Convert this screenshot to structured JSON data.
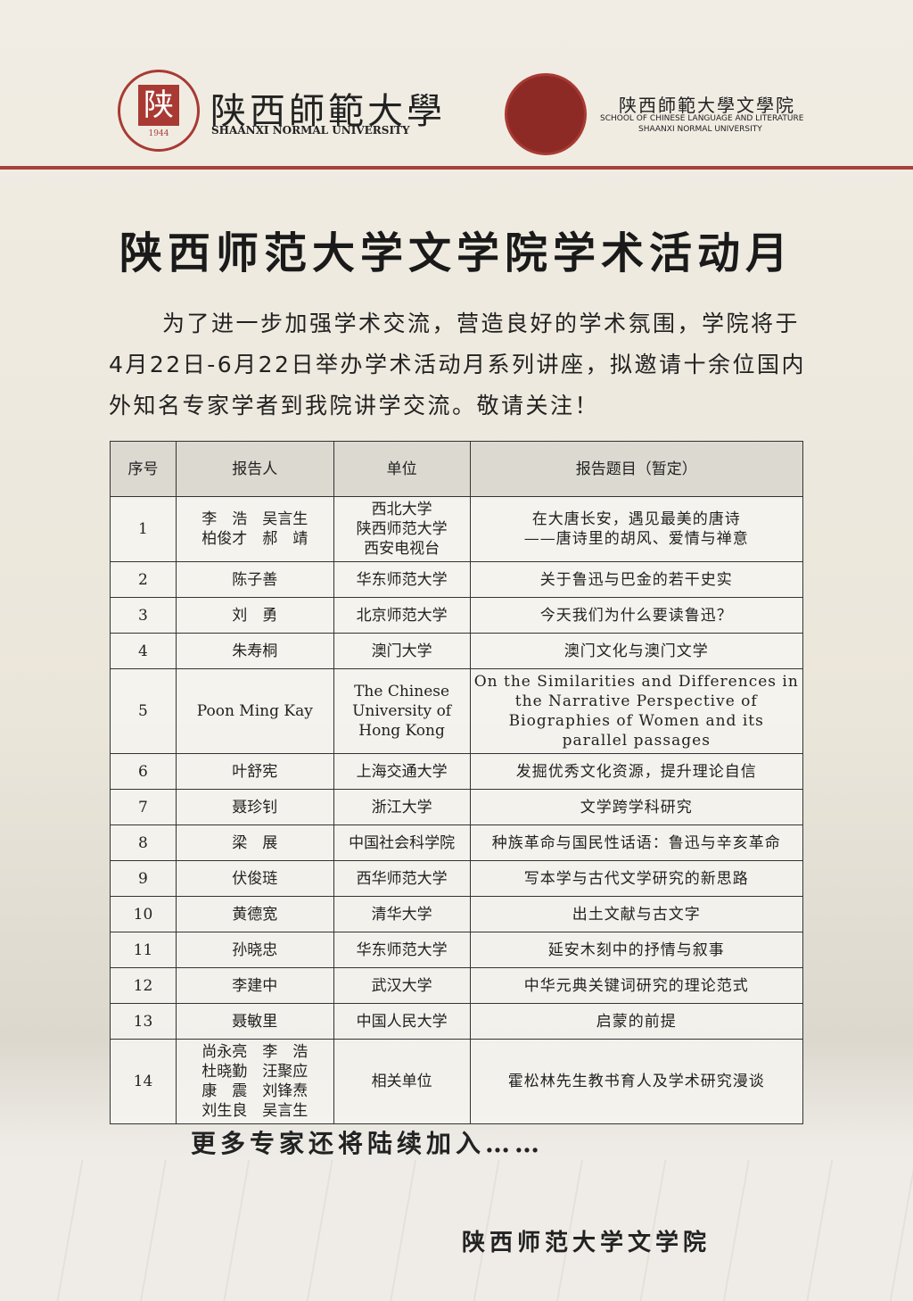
{
  "header": {
    "seal_char": "陕",
    "seal_year": "1944",
    "logo1_cn": "陕西師範大學",
    "logo1_en": "SHAANXI NORMAL UNIVERSITY",
    "logo2_cn": "陕西師範大學文學院",
    "logo2_en1": "SCHOOL OF CHINESE LANGUAGE AND LITERATURE",
    "logo2_en2": "SHAANXI NORMAL UNIVERSITY"
  },
  "title": "陕西师范大学文学院学术活动月",
  "intro": "为了进一步加强学术交流，营造良好的学术氛围，学院将于4月22日-6月22日举办学术活动月系列讲座，拟邀请十余位国内外知名专家学者到我院讲学交流。敬请关注！",
  "table": {
    "columns": [
      "序号",
      "报告人",
      "单位",
      "报告题目（暂定）"
    ],
    "rows": [
      [
        "1",
        "李　浩　吴言生\n柏俊才　郝　靖",
        "西北大学\n陕西师范大学\n西安电视台",
        "在大唐长安，遇见最美的唐诗\n——唐诗里的胡风、爱情与禅意"
      ],
      [
        "2",
        "陈子善",
        "华东师范大学",
        "关于鲁迅与巴金的若干史实"
      ],
      [
        "3",
        "刘　勇",
        "北京师范大学",
        "今天我们为什么要读鲁迅？"
      ],
      [
        "4",
        "朱寿桐",
        "澳门大学",
        "澳门文化与澳门文学"
      ],
      [
        "5",
        "Poon Ming Kay",
        "The Chinese University of Hong Kong",
        "On the Similarities and Differences in the Narrative Perspective of Biographies of Women and its parallel passages"
      ],
      [
        "6",
        "叶舒宪",
        "上海交通大学",
        "发掘优秀文化资源，提升理论自信"
      ],
      [
        "7",
        "聂珍钊",
        "浙江大学",
        "文学跨学科研究"
      ],
      [
        "8",
        "梁　展",
        "中国社会科学院",
        "种族革命与国民性话语：鲁迅与辛亥革命"
      ],
      [
        "9",
        "伏俊琏",
        "西华师范大学",
        "写本学与古代文学研究的新思路"
      ],
      [
        "10",
        "黄德宽",
        "清华大学",
        "出土文献与古文字"
      ],
      [
        "11",
        "孙晓忠",
        "华东师范大学",
        "延安木刻中的抒情与叙事"
      ],
      [
        "12",
        "李建中",
        "武汉大学",
        "中华元典关键词研究的理论范式"
      ],
      [
        "13",
        "聂敏里",
        "中国人民大学",
        "启蒙的前提"
      ],
      [
        "14",
        "尚永亮　李　浩\n杜晓勤　汪聚应\n康　震　刘锋焘\n刘生良　吴言生",
        "相关单位",
        "霍松林先生教书育人及学术研究漫谈"
      ]
    ]
  },
  "footer_note": "更多专家还将陆续加入……",
  "signature": "陕西师范大学文学院"
}
